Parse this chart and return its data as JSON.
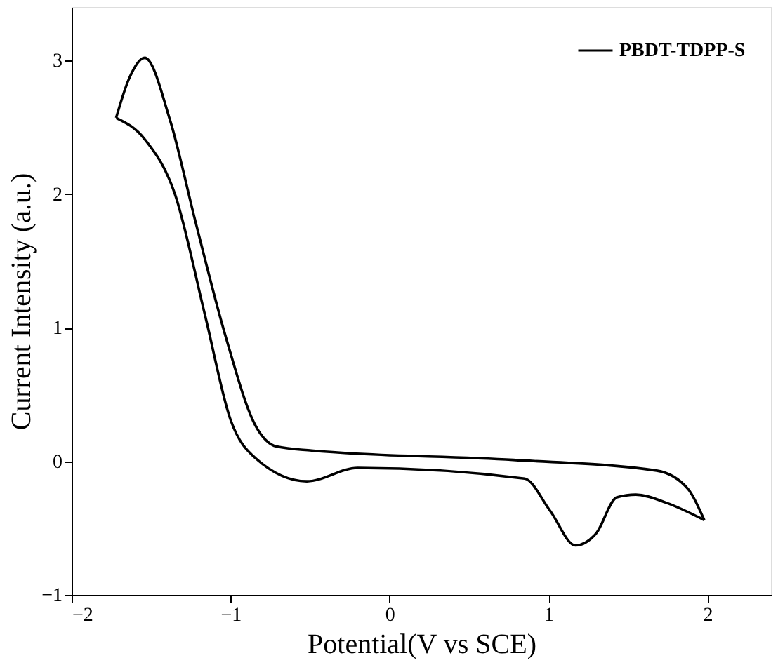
{
  "chart_data": {
    "type": "line",
    "xlabel": "Potential(V vs SCE)",
    "ylabel": "Current Intensity (a.u.)",
    "xlim": [
      -2,
      2.4
    ],
    "xticks": [
      -2,
      -1,
      0,
      1,
      2
    ],
    "ylim": [
      -1,
      3.4
    ],
    "yticks": [
      -1,
      0,
      1,
      2,
      3
    ],
    "grid": false,
    "legend": "top right",
    "line_style": "solid",
    "marker": "none",
    "series": [
      {
        "name": "PBDT-TDPP-S",
        "color": "#000000",
        "x": [
          -1.72,
          -1.54,
          -1.35,
          -1.16,
          -1.0,
          -0.84,
          -0.52,
          -0.2,
          0.85,
          1.01,
          1.17,
          1.3,
          1.43,
          1.55,
          1.74,
          1.98
        ],
        "values": [
          2.57,
          2.41,
          2.0,
          1.09,
          0.31,
          0.02,
          -0.15,
          -0.05,
          -0.13,
          -0.37,
          -0.63,
          -0.54,
          -0.27,
          -0.25,
          -0.31,
          -0.44
        ]
      },
      {
        "color": "#000000",
        "x": [
          1.98,
          1.88,
          1.68,
          0.78,
          -0.49,
          -0.71,
          -0.84,
          -1.03,
          -1.22,
          -1.38,
          -1.54,
          -1.64,
          -1.72
        ],
        "values": [
          -0.44,
          -0.21,
          -0.07,
          0.01,
          0.08,
          0.11,
          0.26,
          0.93,
          1.79,
          2.55,
          3.02,
          2.86,
          2.57
        ]
      }
    ]
  }
}
